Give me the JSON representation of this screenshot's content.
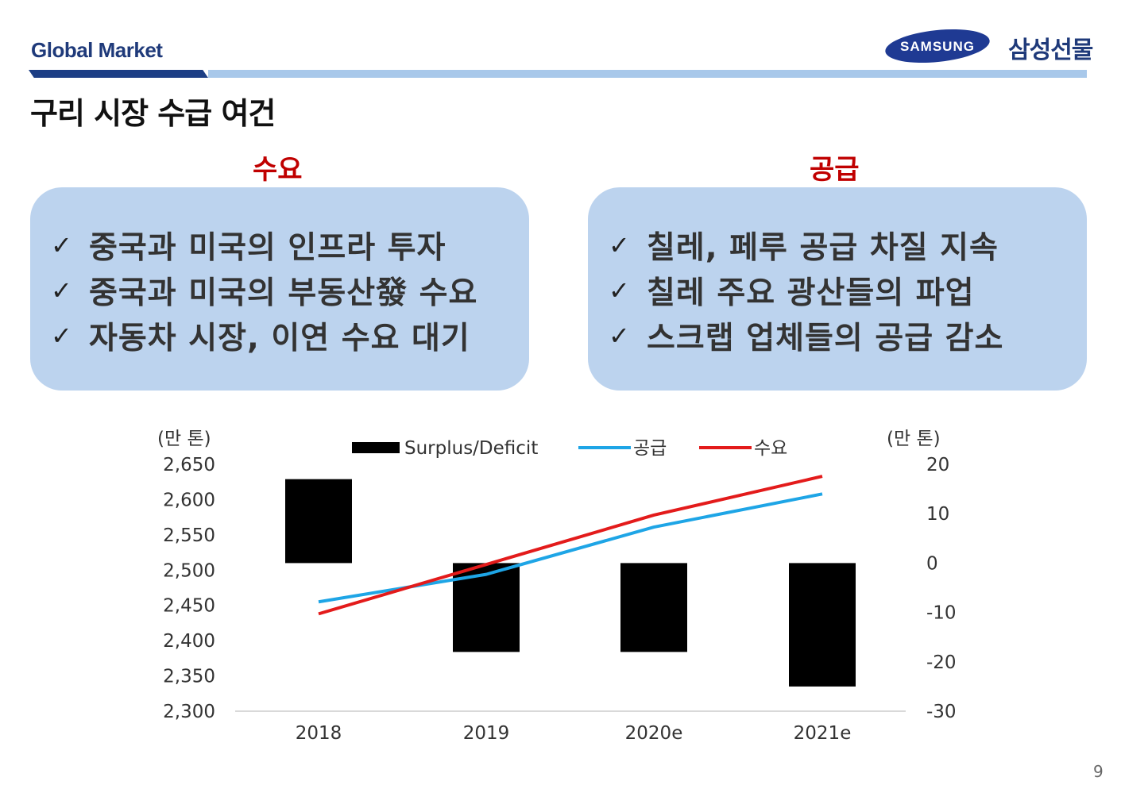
{
  "header": {
    "title": "Global Market",
    "logo_text": "SAMSUNG",
    "brand_ko": "삼성선물"
  },
  "page_title": "구리 시장 수급 여건",
  "demand": {
    "heading": "수요",
    "items": [
      "중국과 미국의 인프라 투자",
      "중국과 미국의 부동산發 수요",
      "자동차 시장, 이연 수요 대기"
    ]
  },
  "supply": {
    "heading": "공급",
    "items": [
      "칠레, 페루 공급 차질 지속",
      "칠레 주요 광산들의 파업",
      "스크랩 업체들의 공급 감소"
    ]
  },
  "check_icon": "✓",
  "page_number": "9",
  "chart_data": {
    "type": "bar+line",
    "categories": [
      "2018",
      "2019",
      "2020e",
      "2021e"
    ],
    "left_axis": {
      "label": "(만 톤)",
      "min": 2300,
      "max": 2650,
      "ticks": [
        "2,650",
        "2,600",
        "2,550",
        "2,500",
        "2,450",
        "2,400",
        "2,350",
        "2,300"
      ]
    },
    "right_axis": {
      "label": "(만 톤)",
      "min": -30,
      "max": 20,
      "ticks": [
        "20",
        "10",
        "0",
        "-10",
        "-20",
        "-30"
      ]
    },
    "bars": {
      "name": "Surplus/Deficit",
      "axis": "right",
      "color": "#000000",
      "values": [
        17,
        -18,
        -18,
        -25
      ]
    },
    "lines": [
      {
        "name": "공급",
        "axis": "left",
        "color": "#1ea5e6",
        "values": [
          2455,
          2494,
          2561,
          2608
        ]
      },
      {
        "name": "수요",
        "axis": "left",
        "color": "#e31b1b",
        "values": [
          2438,
          2508,
          2578,
          2633
        ]
      }
    ],
    "legend_position": "top",
    "grid": false
  }
}
